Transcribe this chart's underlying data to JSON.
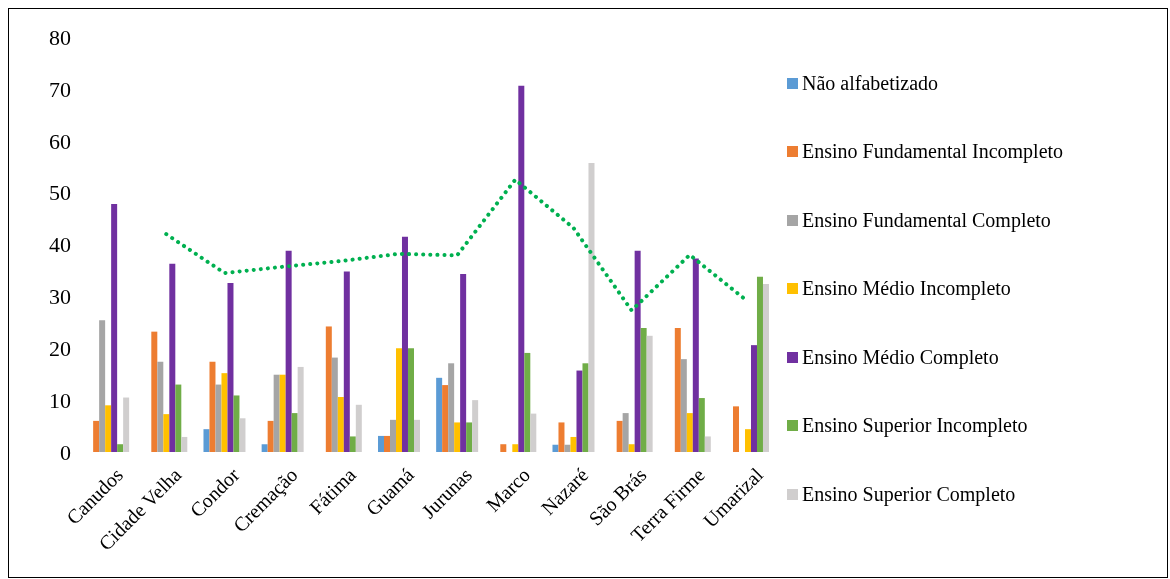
{
  "chart_data": {
    "type": "bar",
    "categories": [
      "Canudos",
      "Cidade Velha",
      "Condor",
      "Cremação",
      "Fátima",
      "Guamá",
      "Jurunas",
      "Marco",
      "Nazaré",
      "São Brás",
      "Terra Firme",
      "Umarizal"
    ],
    "series": [
      {
        "name": "Não alfabetizado",
        "color": "#5b9bd5",
        "values": [
          0,
          0,
          4.4,
          1.5,
          0,
          3.1,
          14.3,
          0,
          1.4,
          0,
          0,
          0
        ]
      },
      {
        "name": "Ensino Fundamental Incompleto",
        "color": "#ed7d31",
        "values": [
          6,
          23.2,
          17.4,
          6,
          24.2,
          3.1,
          12.9,
          1.5,
          5.7,
          6,
          23.9,
          8.8
        ]
      },
      {
        "name": "Ensino Fundamental Completo",
        "color": "#a5a5a5",
        "values": [
          25.4,
          17.4,
          13,
          14.9,
          18.2,
          6.2,
          17.1,
          0,
          1.4,
          7.5,
          17.9,
          0
        ]
      },
      {
        "name": "Ensino Médio Incompleto",
        "color": "#ffc000",
        "values": [
          9,
          7.3,
          15.2,
          14.9,
          10.6,
          20,
          5.7,
          1.5,
          2.9,
          1.5,
          7.5,
          4.4
        ]
      },
      {
        "name": "Ensino Médio Completo",
        "color": "#7030a0",
        "values": [
          47.8,
          36.3,
          32.6,
          38.8,
          34.8,
          41.5,
          34.3,
          70.6,
          15.7,
          38.8,
          37.3,
          20.6
        ]
      },
      {
        "name": "Ensino Superior Incompleto",
        "color": "#70ad47",
        "values": [
          1.5,
          13,
          10.9,
          7.5,
          3,
          20,
          5.7,
          19.1,
          17.1,
          23.9,
          10.4,
          33.8
        ]
      },
      {
        "name": "Ensino Superior Completo",
        "color": "#d0cece",
        "values": [
          10.5,
          2.9,
          6.5,
          16.4,
          9.1,
          6.2,
          10,
          7.4,
          55.7,
          22.4,
          3,
          32.4
        ]
      },
      {
        "type": "line",
        "color": "#00b050",
        "line_style": "dotted",
        "values": [
          null,
          42,
          34.5,
          35.7,
          36.8,
          38.2,
          37.9,
          52.5,
          43.2,
          27.3,
          38,
          29
        ]
      }
    ],
    "ylim": [
      0,
      80
    ],
    "yticks": [
      0,
      10,
      20,
      30,
      40,
      50,
      60,
      70,
      80
    ],
    "grid": false,
    "legend": "right"
  }
}
